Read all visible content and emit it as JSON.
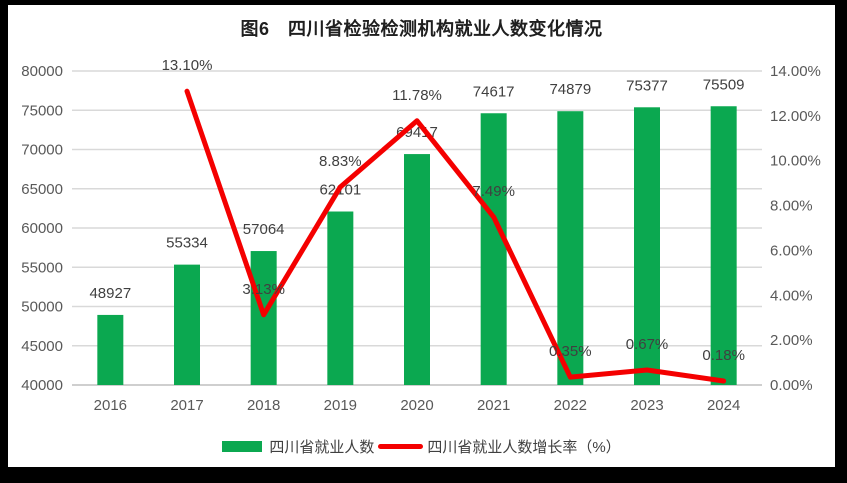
{
  "title": "图6　四川省检验检测机构就业人数变化情况",
  "colors": {
    "bar": "#0ba850",
    "line": "#f40000",
    "grid": "#d9d9d9",
    "grid_bottom": "#cfcfcf",
    "axis_text": "#595959",
    "label_text": "#404040",
    "frame": "#000000",
    "background": "#ffffff"
  },
  "legend": {
    "items": [
      {
        "label": "四川省就业人数",
        "type": "bar"
      },
      {
        "label": "四川省就业人数增长率（%）",
        "type": "line"
      }
    ]
  },
  "chart_data": {
    "type": "bar",
    "subtype": "combo-bar-line",
    "title": "图6　四川省检验检测机构就业人数变化情况",
    "categories": [
      "2016",
      "2017",
      "2018",
      "2019",
      "2020",
      "2021",
      "2022",
      "2023",
      "2024"
    ],
    "series": [
      {
        "name": "四川省就业人数",
        "type": "bar",
        "axis": "left",
        "values": [
          48927,
          55334,
          57064,
          62101,
          69417,
          74617,
          74879,
          75377,
          75509
        ],
        "labels": [
          "48927",
          "55334",
          "57064",
          "62101",
          "69417",
          "74617",
          "74879",
          "75377",
          "75509"
        ]
      },
      {
        "name": "四川省就业人数增长率（%）",
        "type": "line",
        "axis": "right",
        "values": [
          null,
          13.1,
          3.13,
          8.83,
          11.78,
          7.49,
          0.35,
          0.67,
          0.18
        ],
        "labels": [
          null,
          "13.10%",
          "3.13%",
          "8.83%",
          "11.78%",
          "7.49%",
          "0.35%",
          "0.67%",
          "0.18%"
        ]
      }
    ],
    "left_axis": {
      "min": 40000,
      "max": 80000,
      "step": 5000,
      "ticks": [
        "40000",
        "45000",
        "50000",
        "55000",
        "60000",
        "65000",
        "70000",
        "75000",
        "80000"
      ]
    },
    "right_axis": {
      "min": 0,
      "max": 14,
      "step": 2,
      "ticks": [
        "0.00%",
        "2.00%",
        "4.00%",
        "6.00%",
        "8.00%",
        "10.00%",
        "12.00%",
        "14.00%"
      ]
    },
    "grid": true,
    "legend_position": "bottom"
  }
}
